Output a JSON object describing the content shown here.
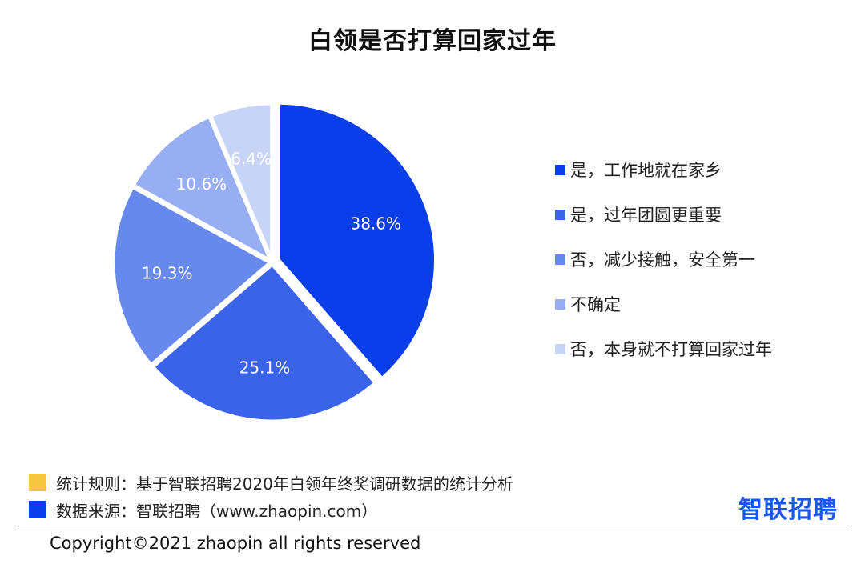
{
  "chart_data": {
    "type": "pie",
    "title": "白领是否打算回家过年",
    "slices": [
      {
        "label": "是，工作地就在家乡",
        "value": 38.6,
        "display": "38.6%",
        "color": "#0a3ee8"
      },
      {
        "label": "是，过年团圆更重要",
        "value": 25.1,
        "display": "25.1%",
        "color": "#3b63ea"
      },
      {
        "label": "否，减少接触，安全第一",
        "value": 19.3,
        "display": "19.3%",
        "color": "#6789ee"
      },
      {
        "label": "不确定",
        "value": 10.6,
        "display": "10.6%",
        "color": "#98aef3"
      },
      {
        "label": "否，本身就不打算回家过年",
        "value": 6.4,
        "display": "6.4%",
        "color": "#c8d3f8"
      }
    ],
    "legend_position": "right"
  },
  "notes": [
    {
      "text": "统计规则：基于智联招聘2020年白领年终奖调研数据的统计分析",
      "color": "#f5c842"
    },
    {
      "text": "数据来源：智联招聘（www.zhaopin.com）",
      "color": "#0a3ee8"
    }
  ],
  "brand": "智联招聘",
  "copyright": "Copyright©2021 zhaopin all rights reserved"
}
